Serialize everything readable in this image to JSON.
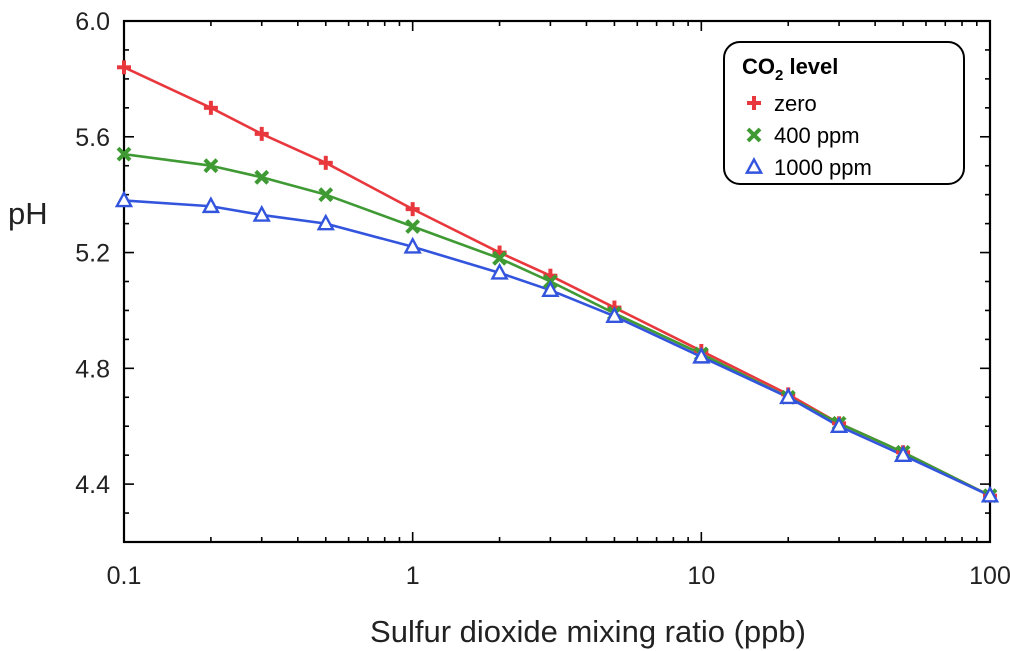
{
  "chart_data": {
    "type": "line",
    "title": "",
    "xlabel": "Sulfur dioxide mixing ratio (ppb)",
    "ylabel": "pH",
    "xscale": "log",
    "xlim": [
      0.1,
      100
    ],
    "ylim": [
      4.2,
      6.0
    ],
    "xticks": [
      0.1,
      1,
      10,
      100
    ],
    "xtick_labels": [
      "0.1",
      "1",
      "10",
      "100"
    ],
    "yticks": [
      4.4,
      4.8,
      5.2,
      5.6,
      6.0
    ],
    "ytick_labels": [
      "4.4",
      "4.8",
      "5.2",
      "5.6",
      "6.0"
    ],
    "grid": false,
    "legend": {
      "title_main": "CO",
      "title_sub": "2",
      "title_rest": " level",
      "placement": "top-right"
    },
    "x": [
      0.1,
      0.2,
      0.3,
      0.5,
      1,
      2,
      3,
      5,
      10,
      20,
      30,
      50,
      100
    ],
    "series": [
      {
        "name": "zero",
        "color": "#e8383d",
        "marker": "plus",
        "values": [
          5.84,
          5.7,
          5.61,
          5.51,
          5.35,
          5.2,
          5.12,
          5.01,
          4.86,
          4.71,
          4.61,
          4.51,
          4.36
        ]
      },
      {
        "name": "400 ppm",
        "color": "#3f9a34",
        "marker": "x",
        "values": [
          5.54,
          5.5,
          5.46,
          5.4,
          5.29,
          5.18,
          5.1,
          4.99,
          4.85,
          4.7,
          4.61,
          4.51,
          4.36
        ]
      },
      {
        "name": "1000 ppm",
        "color": "#3355dd",
        "marker": "triangle",
        "values": [
          5.38,
          5.36,
          5.33,
          5.3,
          5.22,
          5.13,
          5.07,
          4.98,
          4.84,
          4.7,
          4.6,
          4.5,
          4.36
        ]
      }
    ]
  }
}
